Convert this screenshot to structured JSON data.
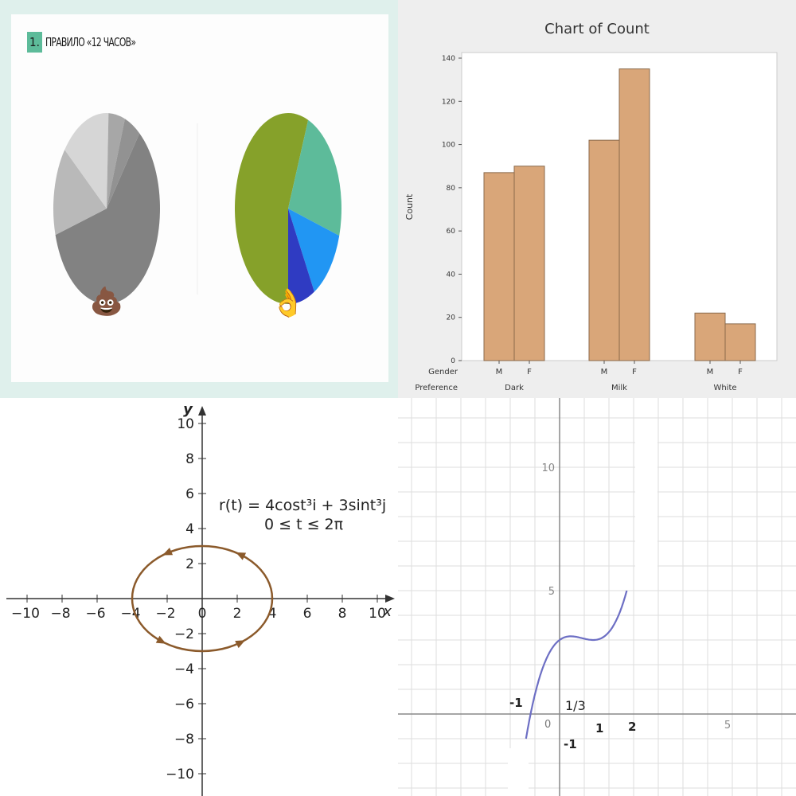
{
  "panels": {
    "slide": {
      "number": "1.",
      "title": "ПРАВИЛО «12 ЧАСОВ»",
      "badge_color": "#5dbb9a",
      "left_emoji": "💩",
      "right_emoji": "👌"
    },
    "bar_chart": {
      "title": "Chart of Count",
      "ylabel": "Count",
      "row_labels": [
        "Gender",
        "Preference"
      ]
    },
    "parametric": {
      "equation": "r(t) = 4cost³i + 3sint³j",
      "domain": "0 ≤ t ≤ 2π",
      "axis_x": "x",
      "axis_y": "y"
    },
    "cubic": {
      "point_labels": [
        "-1",
        "1/3",
        "-1",
        "0",
        "1",
        "2"
      ]
    }
  },
  "chart_data": [
    {
      "type": "pie",
      "slices": [
        60,
        15,
        15,
        5,
        5
      ],
      "colors": [
        "#828282",
        "#b9b9b9",
        "#d6d6d6",
        "#a7a7a7",
        "#929292"
      ]
    },
    {
      "type": "pie",
      "slices": [
        55,
        23,
        12,
        8
      ],
      "colors": [
        "#86a12a",
        "#5dbb9a",
        "#2196f3",
        "#2f3bc2"
      ]
    },
    {
      "type": "bar",
      "title": "Chart of Count",
      "ylabel": "Count",
      "categories": [
        {
          "gender": "M",
          "preference": "Dark",
          "value": 87
        },
        {
          "gender": "F",
          "preference": "Dark",
          "value": 90
        },
        {
          "gender": "M",
          "preference": "Milk",
          "value": 102
        },
        {
          "gender": "F",
          "preference": "Milk",
          "value": 135
        },
        {
          "gender": "M",
          "preference": "White",
          "value": 22
        },
        {
          "gender": "F",
          "preference": "White",
          "value": 17
        }
      ],
      "groups": [
        "Dark",
        "Milk",
        "White"
      ],
      "ylim": [
        0,
        140
      ],
      "yticks": [
        0,
        20,
        40,
        60,
        80,
        100,
        120,
        140
      ],
      "bar_color": "#d9a679",
      "grid": false
    },
    {
      "type": "line",
      "curve": "parametric ellipse x = 4cos t, y = 3sin t",
      "xlim": [
        -10,
        10
      ],
      "ylim": [
        -10,
        10
      ],
      "xticks": [
        -10,
        -8,
        -6,
        -4,
        -2,
        0,
        2,
        4,
        6,
        8,
        10
      ],
      "yticks": [
        -10,
        -8,
        -6,
        -4,
        -2,
        2,
        4,
        6,
        8,
        10
      ],
      "semi_axes": [
        4,
        3
      ],
      "color": "#8b5a2b"
    },
    {
      "type": "line",
      "curve": "cubic y = x³ − 2x² + x + 3 on [−1.4, 2]",
      "xlim": [
        -4,
        10
      ],
      "ylim": [
        -3,
        13
      ],
      "xticks": [
        5
      ],
      "yticks": [
        5,
        10
      ],
      "grid": true,
      "color": "#6d6fc4"
    }
  ]
}
